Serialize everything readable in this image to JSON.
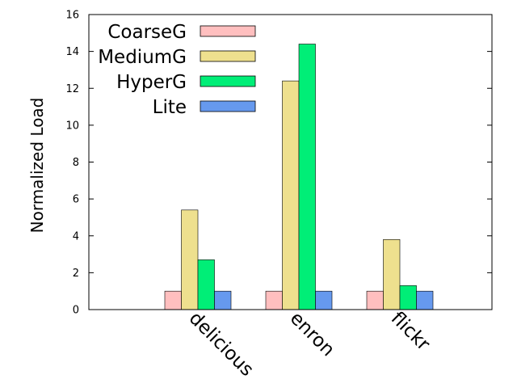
{
  "chart_data": {
    "type": "bar",
    "title": "",
    "xlabel": "",
    "ylabel": "Normalized Load",
    "ylim": [
      0,
      16
    ],
    "yticks": [
      0,
      2,
      4,
      6,
      8,
      10,
      12,
      14,
      16
    ],
    "grid": false,
    "legend_position": "top-left",
    "categories": [
      "delicious",
      "enron",
      "flickr"
    ],
    "series": [
      {
        "name": "CoarseG",
        "color": "#ffbfbf",
        "values": [
          1.0,
          1.0,
          1.0
        ]
      },
      {
        "name": "MediumG",
        "color": "#eee08e",
        "values": [
          5.4,
          12.4,
          3.8
        ]
      },
      {
        "name": "HyperG",
        "color": "#00ee77",
        "values": [
          2.7,
          14.4,
          1.3
        ]
      },
      {
        "name": "Lite",
        "color": "#6699ee",
        "values": [
          1.0,
          1.0,
          1.0
        ]
      }
    ]
  }
}
